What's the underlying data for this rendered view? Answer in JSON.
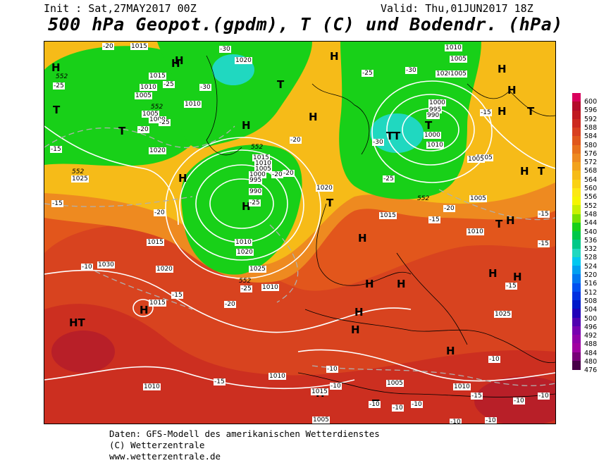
{
  "header": {
    "init": "Init : Sat,27MAY2017 00Z",
    "valid": "Valid: Thu,01JUN2017 18Z",
    "title": "500 hPa Geopot.(gpdm), T (C) und Bodendr. (hPa)"
  },
  "legend": {
    "values": [
      "600",
      "596",
      "592",
      "588",
      "584",
      "580",
      "576",
      "572",
      "568",
      "564",
      "560",
      "556",
      "552",
      "548",
      "544",
      "540",
      "536",
      "532",
      "528",
      "524",
      "520",
      "516",
      "512",
      "508",
      "504",
      "500",
      "496",
      "492",
      "488",
      "484",
      "480",
      "476"
    ],
    "colors": [
      "#d9005c",
      "#b40b2b",
      "#c01a20",
      "#cc2a20",
      "#d84020",
      "#e0581c",
      "#e8721c",
      "#ee8a20",
      "#f2a21c",
      "#f6bb18",
      "#fad214",
      "#fce814",
      "#f5f500",
      "#c8f000",
      "#78e000",
      "#18d018",
      "#00c848",
      "#00c888",
      "#20d8c0",
      "#00c8f0",
      "#00a0f0",
      "#0078f0",
      "#0050f0",
      "#0030e0",
      "#0018c8",
      "#2000b8",
      "#5000b0",
      "#7800b0",
      "#9000a8",
      "#a000a0",
      "#780078",
      "#480048"
    ]
  },
  "pressure_labels": [
    "1015",
    "1020",
    "1010",
    "1005",
    "1015",
    "1010",
    "1005",
    "1000",
    "1010",
    "1005",
    "1020",
    "1005",
    "1020",
    "1025",
    "1015",
    "1010",
    "1005",
    "1000",
    "995",
    "990",
    "1020",
    "1005",
    "1000",
    "995",
    "990",
    "1000",
    "1010",
    "1005",
    "1015",
    "1010",
    "1005",
    "1015",
    "1010",
    "1020",
    "1025",
    "1030",
    "1020",
    "1015",
    "1010",
    "1025",
    "1010",
    "1005",
    "1015",
    "1010",
    "1005",
    "1010"
  ],
  "temp_labels": [
    "-20",
    "-30",
    "-25",
    "-25",
    "-30",
    "-25",
    "-15",
    "-20",
    "-25",
    "-20",
    "-15",
    "-20",
    "-20",
    "-25",
    "-20",
    "-25",
    "-30",
    "-30",
    "-20",
    "-25",
    "-15",
    "-15",
    "-15",
    "-10",
    "-15",
    "-20",
    "-15",
    "-10",
    "-10",
    "-15",
    "-10",
    "-10",
    "-10",
    "-10",
    "-10",
    "-10",
    "-10",
    "-15",
    "-15",
    "-10"
  ],
  "geopot_labels": [
    "552",
    "552",
    "552",
    "552",
    "552",
    "552"
  ],
  "centers": [
    "H",
    "H",
    "T",
    "H",
    "H",
    "T",
    "H",
    "H",
    "T",
    "T",
    "H",
    "T",
    "H",
    "T",
    "T",
    "H",
    "T",
    "T",
    "H",
    "H",
    "H",
    "H",
    "H",
    "H",
    "H",
    "H",
    "T",
    "H",
    "H",
    "HT",
    "H",
    "H",
    "T",
    "H",
    "H",
    "T",
    "H"
  ],
  "footer": {
    "line1": "Daten: GFS-Modell des amerikanischen Wetterdienstes",
    "line2": "(C) Wetterzentrale",
    "line3": "www.wetterzentrale.de"
  }
}
